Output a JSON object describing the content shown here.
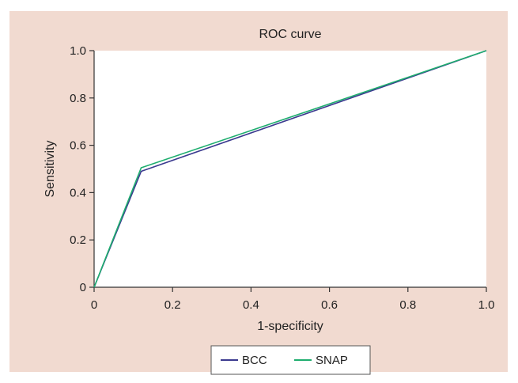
{
  "chart_data": {
    "type": "line",
    "title": "ROC curve",
    "xlabel": "1-specificity",
    "ylabel": "Sensitivity",
    "xlim": [
      0,
      1
    ],
    "ylim": [
      0,
      1
    ],
    "x_ticks": [
      "0",
      "0.2",
      "0.4",
      "0.6",
      "0.8",
      "1.0"
    ],
    "y_ticks": [
      "0",
      "0.2",
      "0.4",
      "0.6",
      "0.8",
      "1.0"
    ],
    "grid": false,
    "legend_position": "bottom-center",
    "series": [
      {
        "name": "BCC",
        "color": "#3b3a8f",
        "x": [
          0,
          0.12,
          1.0
        ],
        "y": [
          0,
          0.49,
          1.0
        ]
      },
      {
        "name": "SNAP",
        "color": "#1fae6f",
        "x": [
          0,
          0.12,
          1.0
        ],
        "y": [
          0,
          0.505,
          1.0
        ]
      }
    ]
  }
}
